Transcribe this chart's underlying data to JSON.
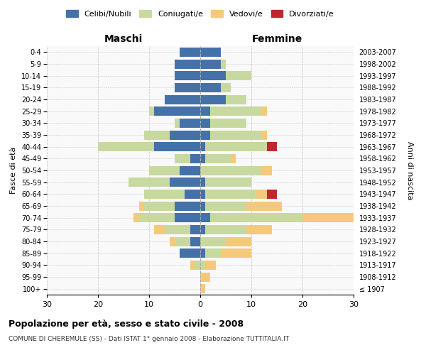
{
  "age_groups": [
    "100+",
    "95-99",
    "90-94",
    "85-89",
    "80-84",
    "75-79",
    "70-74",
    "65-69",
    "60-64",
    "55-59",
    "50-54",
    "45-49",
    "40-44",
    "35-39",
    "30-34",
    "25-29",
    "20-24",
    "15-19",
    "10-14",
    "5-9",
    "0-4"
  ],
  "birth_years": [
    "≤ 1907",
    "1908-1912",
    "1913-1917",
    "1918-1922",
    "1923-1927",
    "1928-1932",
    "1933-1937",
    "1938-1942",
    "1943-1947",
    "1948-1952",
    "1953-1957",
    "1958-1962",
    "1963-1967",
    "1968-1972",
    "1973-1977",
    "1978-1982",
    "1983-1987",
    "1988-1992",
    "1993-1997",
    "1998-2002",
    "2003-2007"
  ],
  "males": {
    "celibe": [
      0,
      0,
      0,
      4,
      2,
      2,
      5,
      5,
      3,
      6,
      4,
      2,
      9,
      6,
      4,
      9,
      7,
      5,
      5,
      5,
      4
    ],
    "coniugato": [
      0,
      0,
      1,
      0,
      3,
      5,
      7,
      6,
      8,
      8,
      6,
      3,
      11,
      5,
      1,
      1,
      0,
      0,
      0,
      0,
      0
    ],
    "vedovo": [
      0,
      0,
      1,
      0,
      1,
      2,
      1,
      1,
      0,
      0,
      0,
      0,
      0,
      0,
      0,
      0,
      0,
      0,
      0,
      0,
      0
    ],
    "divorziato": [
      0,
      0,
      0,
      0,
      0,
      0,
      0,
      0,
      0,
      0,
      0,
      0,
      0,
      0,
      0,
      0,
      0,
      0,
      0,
      0,
      0
    ]
  },
  "females": {
    "nubile": [
      0,
      0,
      0,
      1,
      0,
      1,
      2,
      1,
      1,
      1,
      0,
      1,
      1,
      2,
      2,
      2,
      5,
      4,
      5,
      4,
      4
    ],
    "coniugata": [
      0,
      0,
      1,
      3,
      5,
      8,
      18,
      8,
      10,
      9,
      12,
      5,
      12,
      10,
      7,
      10,
      4,
      2,
      5,
      1,
      0
    ],
    "vedova": [
      1,
      2,
      2,
      6,
      5,
      5,
      10,
      7,
      2,
      0,
      2,
      1,
      0,
      1,
      0,
      1,
      0,
      0,
      0,
      0,
      0
    ],
    "divorziata": [
      0,
      0,
      0,
      0,
      0,
      0,
      0,
      0,
      2,
      0,
      0,
      0,
      2,
      0,
      0,
      0,
      0,
      0,
      0,
      0,
      0
    ]
  },
  "colors": {
    "celibe_nubile": "#4472A8",
    "coniugato_a": "#C8D9A0",
    "vedovo_a": "#F5C97A",
    "divorziato_a": "#C0272D"
  },
  "xlim": 30,
  "title": "Popolazione per età, sesso e stato civile - 2008",
  "subtitle": "COMUNE DI CHEREMULE (SS) - Dati ISTAT 1° gennaio 2008 - Elaborazione TUTTITALIA.IT",
  "ylabel": "Fasce di età",
  "ylabel_right": "Anni di nascita",
  "label_maschi": "Maschi",
  "label_femmine": "Femmine",
  "legend_labels": [
    "Celibi/Nubili",
    "Coniugati/e",
    "Vedovi/e",
    "Divorziati/e"
  ],
  "bg_color": "#ffffff",
  "plot_bg": "#f9f9f9",
  "grid_color": "#cccccc"
}
